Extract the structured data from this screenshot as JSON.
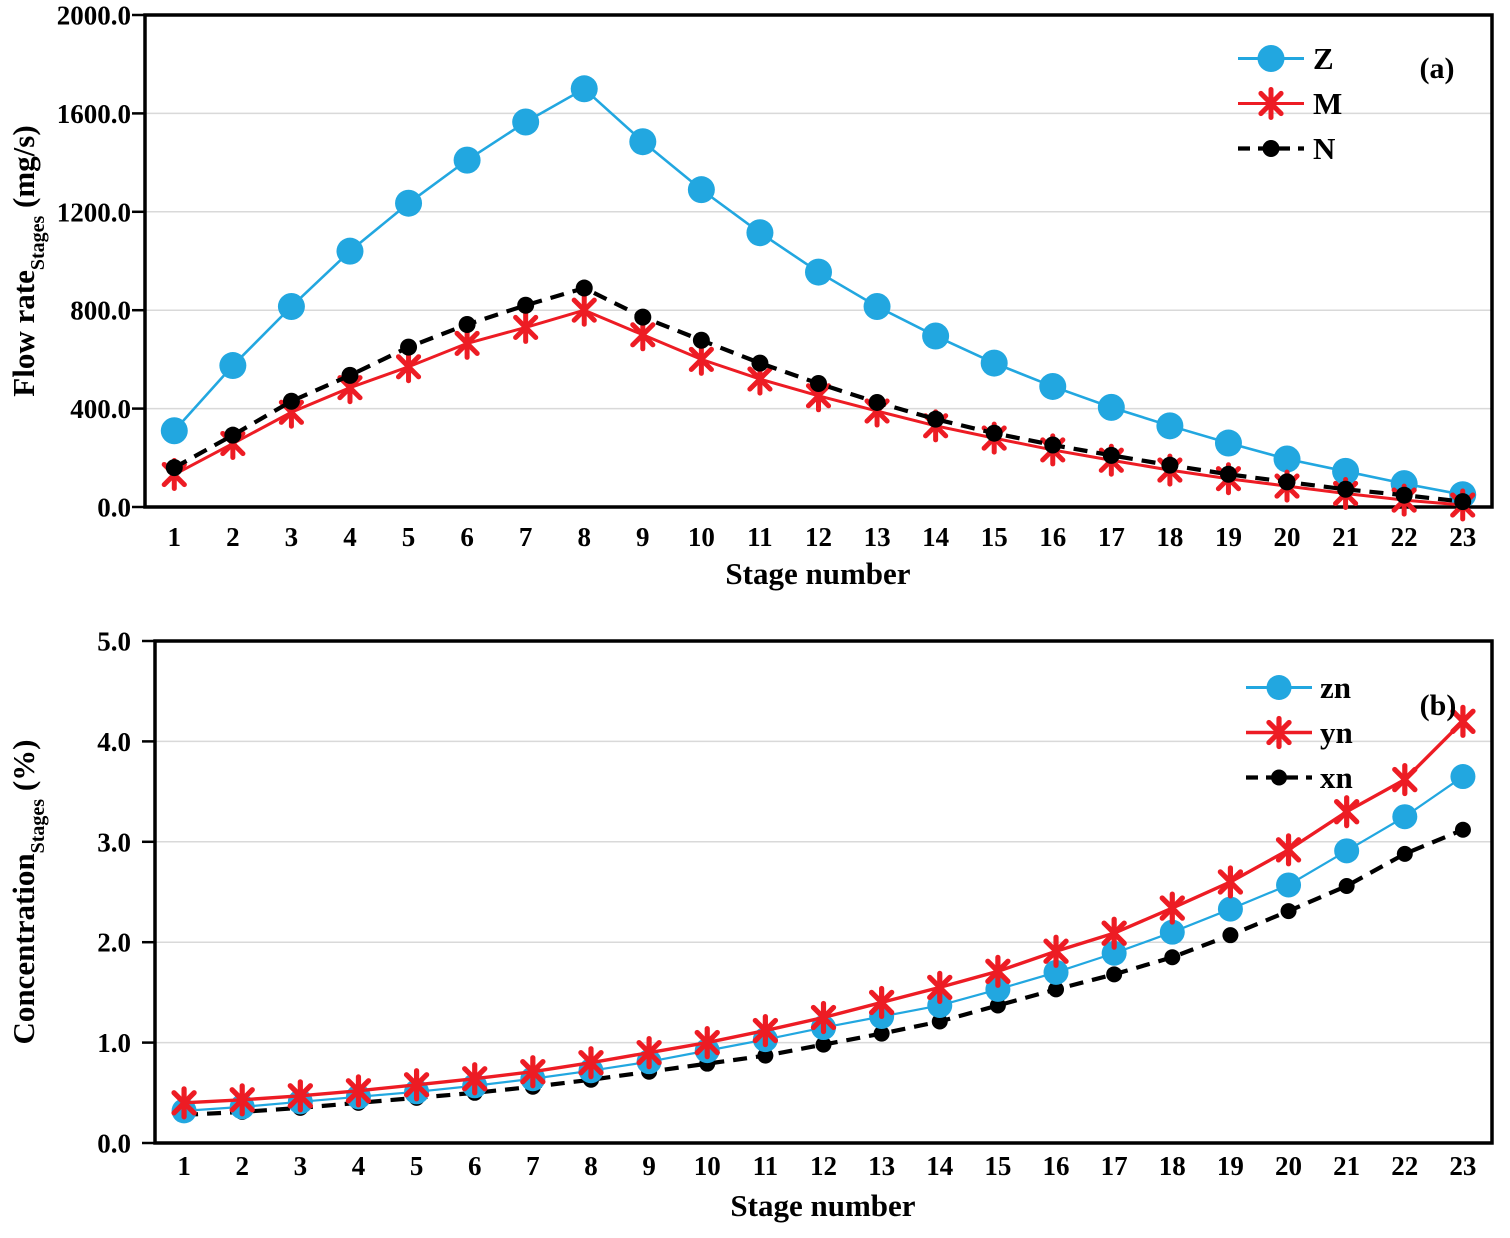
{
  "chart_data": [
    {
      "id": "a",
      "type": "line",
      "panel_label": "(a)",
      "xlabel": "Stage number",
      "ylabel": {
        "text": "Flow rate",
        "subscript": "Stages",
        "unit": " (mg/s)"
      },
      "x": [
        1,
        2,
        3,
        4,
        5,
        6,
        7,
        8,
        9,
        10,
        11,
        12,
        13,
        14,
        15,
        16,
        17,
        18,
        19,
        20,
        21,
        22,
        23
      ],
      "ylim": [
        0,
        2000
      ],
      "y_ticks": [
        0,
        400,
        800,
        1200,
        1600,
        2000
      ],
      "y_tick_labels": [
        "0.0",
        "400.0",
        "800.0",
        "1200.0",
        "1600.0",
        "2000.0"
      ],
      "grid": "horizontal",
      "legend_position": "inside-top-right",
      "series": [
        {
          "name": "Z",
          "color": "#22A7E0",
          "marker": "circle",
          "line_style": "solid",
          "values": [
            310,
            575,
            815,
            1040,
            1235,
            1410,
            1565,
            1700,
            1485,
            1290,
            1115,
            955,
            815,
            695,
            585,
            490,
            405,
            330,
            260,
            195,
            145,
            95,
            50
          ]
        },
        {
          "name": "M",
          "color": "#ED1C24",
          "marker": "asterisk",
          "line_style": "solid",
          "values": [
            132,
            258,
            385,
            485,
            570,
            665,
            730,
            800,
            700,
            600,
            520,
            452,
            390,
            330,
            280,
            232,
            190,
            150,
            115,
            85,
            55,
            28,
            8
          ]
        },
        {
          "name": "N",
          "color": "#000000",
          "marker": "dot",
          "line_style": "dashed",
          "values": [
            160,
            292,
            430,
            535,
            650,
            742,
            820,
            890,
            772,
            678,
            585,
            502,
            425,
            357,
            300,
            252,
            210,
            170,
            133,
            102,
            72,
            48,
            22
          ]
        }
      ]
    },
    {
      "id": "b",
      "type": "line",
      "panel_label": "(b)",
      "xlabel": "Stage number",
      "ylabel": {
        "text": "Concentration",
        "subscript": "Stages",
        "unit": " (%)"
      },
      "x": [
        1,
        2,
        3,
        4,
        5,
        6,
        7,
        8,
        9,
        10,
        11,
        12,
        13,
        14,
        15,
        16,
        17,
        18,
        19,
        20,
        21,
        22,
        23
      ],
      "ylim": [
        0,
        5
      ],
      "y_ticks": [
        0,
        1,
        2,
        3,
        4,
        5
      ],
      "y_tick_labels": [
        "0.0",
        "1.0",
        "2.0",
        "3.0",
        "4.0",
        "5.0"
      ],
      "grid": "horizontal",
      "legend_position": "inside-top-right",
      "series": [
        {
          "name": "zn",
          "color": "#22A7E0",
          "marker": "circle",
          "line_style": "solid",
          "values": [
            0.32,
            0.36,
            0.41,
            0.46,
            0.51,
            0.57,
            0.64,
            0.72,
            0.81,
            0.92,
            1.03,
            1.15,
            1.26,
            1.37,
            1.53,
            1.7,
            1.89,
            2.1,
            2.33,
            2.57,
            2.91,
            3.25,
            3.65
          ]
        },
        {
          "name": "yn",
          "color": "#ED1C24",
          "marker": "asterisk",
          "line_style": "solid",
          "values": [
            0.4,
            0.43,
            0.47,
            0.52,
            0.58,
            0.64,
            0.71,
            0.8,
            0.9,
            1.0,
            1.12,
            1.25,
            1.4,
            1.55,
            1.71,
            1.91,
            2.09,
            2.34,
            2.6,
            2.92,
            3.3,
            3.62,
            4.2
          ]
        },
        {
          "name": "xn",
          "color": "#000000",
          "marker": "dot",
          "line_style": "dashed",
          "values": [
            0.28,
            0.31,
            0.35,
            0.4,
            0.45,
            0.5,
            0.56,
            0.63,
            0.71,
            0.79,
            0.87,
            0.98,
            1.09,
            1.21,
            1.37,
            1.53,
            1.68,
            1.85,
            2.07,
            2.31,
            2.56,
            2.88,
            3.12
          ]
        }
      ]
    }
  ]
}
